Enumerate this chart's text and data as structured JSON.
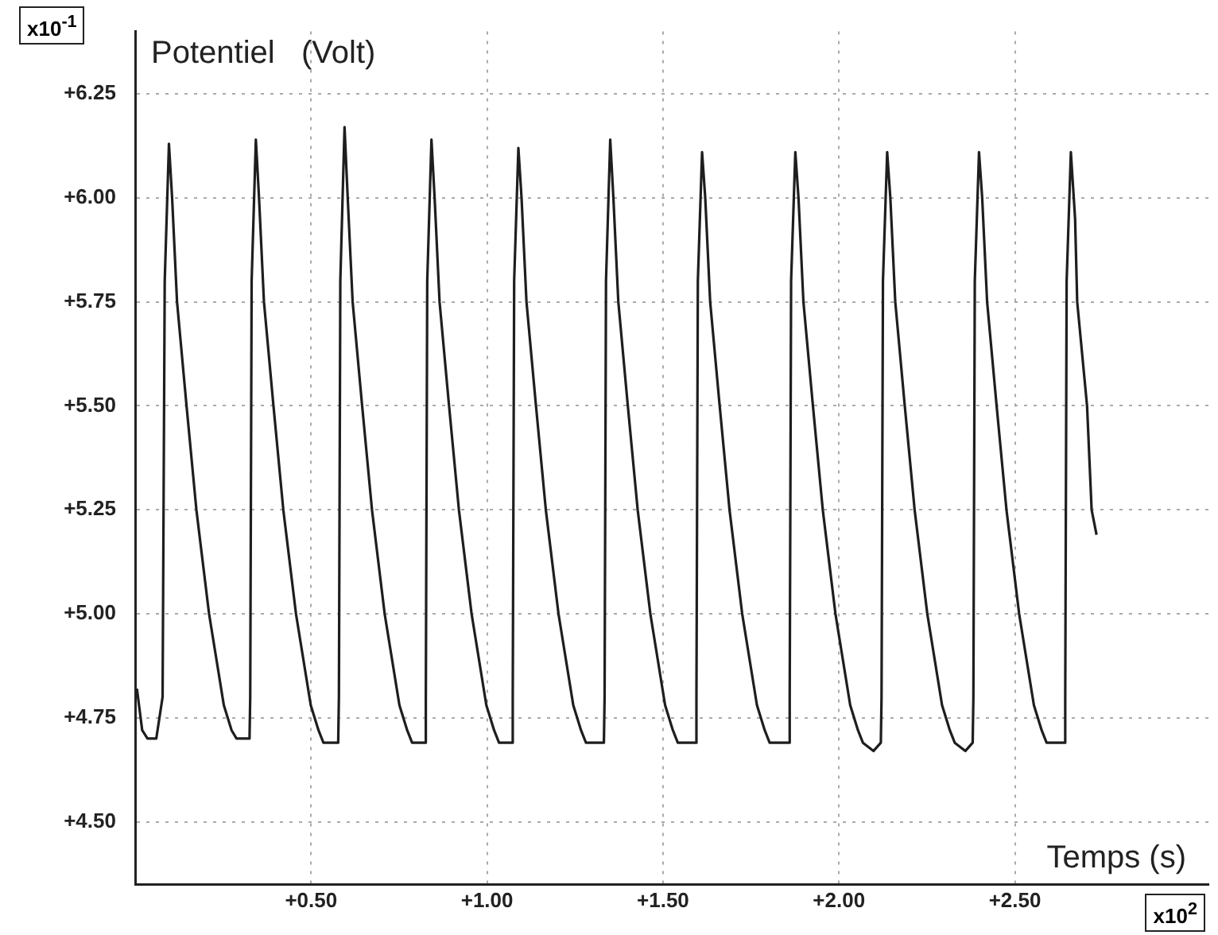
{
  "chart_data": {
    "type": "line",
    "ylabel": "Potentiel   (Volt)",
    "xlabel": "Temps (s)",
    "annotations": [
      "x10$^{-1}$",
      "x10$^{2}$"
    ],
    "x": [
      0.005,
      0.02,
      0.035,
      0.06,
      0.078,
      0.084,
      0.096,
      0.105,
      0.119,
      0.146,
      0.174,
      0.21,
      0.252,
      0.274,
      0.288,
      0.318,
      0.325,
      0.327,
      0.331,
      0.343,
      0.352,
      0.366,
      0.393,
      0.421,
      0.457,
      0.499,
      0.521,
      0.535,
      0.565,
      0.577,
      0.579,
      0.583,
      0.595,
      0.604,
      0.618,
      0.645,
      0.673,
      0.709,
      0.751,
      0.773,
      0.787,
      0.817,
      0.824,
      0.826,
      0.83,
      0.842,
      0.851,
      0.865,
      0.892,
      0.92,
      0.956,
      0.998,
      1.02,
      1.034,
      1.064,
      1.071,
      1.073,
      1.077,
      1.089,
      1.098,
      1.112,
      1.139,
      1.167,
      1.203,
      1.245,
      1.267,
      1.281,
      1.311,
      1.332,
      1.334,
      1.338,
      1.35,
      1.359,
      1.373,
      1.4,
      1.428,
      1.464,
      1.506,
      1.528,
      1.542,
      1.572,
      1.593,
      1.595,
      1.599,
      1.611,
      1.62,
      1.634,
      1.661,
      1.689,
      1.725,
      1.767,
      1.789,
      1.803,
      1.833,
      1.858,
      1.86,
      1.864,
      1.876,
      1.885,
      1.899,
      1.926,
      1.954,
      1.99,
      2.032,
      2.054,
      2.068,
      2.098,
      2.119,
      2.121,
      2.125,
      2.137,
      2.146,
      2.16,
      2.187,
      2.215,
      2.251,
      2.293,
      2.315,
      2.329,
      2.359,
      2.38,
      2.382,
      2.386,
      2.398,
      2.407,
      2.421,
      2.448,
      2.476,
      2.512,
      2.554,
      2.576,
      2.59,
      2.62,
      2.641,
      2.643,
      2.647,
      2.659,
      2.671,
      2.677,
      2.705,
      2.718,
      2.732
    ],
    "series": [
      {
        "color": "#1e1e1e",
        "values": [
          4.82,
          4.72,
          4.7,
          4.7,
          4.8,
          5.8,
          6.13,
          6.0,
          5.75,
          5.5,
          5.25,
          5.0,
          4.78,
          4.72,
          4.7,
          4.7,
          4.7,
          4.8,
          5.8,
          6.14,
          6.0,
          5.75,
          5.5,
          5.25,
          5.0,
          4.78,
          4.72,
          4.69,
          4.69,
          4.69,
          4.8,
          5.8,
          6.17,
          6.0,
          5.75,
          5.5,
          5.25,
          5.0,
          4.78,
          4.72,
          4.69,
          4.69,
          4.69,
          4.8,
          5.8,
          6.14,
          6.0,
          5.75,
          5.5,
          5.25,
          5.0,
          4.78,
          4.72,
          4.69,
          4.69,
          4.69,
          4.8,
          5.8,
          6.12,
          6.0,
          5.75,
          5.5,
          5.25,
          5.0,
          4.78,
          4.72,
          4.69,
          4.69,
          4.69,
          4.8,
          5.8,
          6.14,
          6.0,
          5.75,
          5.5,
          5.25,
          5.0,
          4.78,
          4.72,
          4.69,
          4.69,
          4.69,
          4.8,
          5.8,
          6.11,
          6.0,
          5.75,
          5.5,
          5.25,
          5.0,
          4.78,
          4.72,
          4.69,
          4.69,
          4.69,
          4.8,
          5.8,
          6.11,
          6.0,
          5.75,
          5.5,
          5.25,
          5.0,
          4.78,
          4.72,
          4.69,
          4.67,
          4.69,
          4.8,
          5.8,
          6.11,
          6.0,
          5.75,
          5.5,
          5.25,
          5.0,
          4.78,
          4.72,
          4.69,
          4.67,
          4.69,
          4.8,
          5.8,
          6.11,
          6.0,
          5.75,
          5.5,
          5.25,
          5.0,
          4.78,
          4.72,
          4.69,
          4.69,
          4.69,
          4.8,
          5.8,
          6.11,
          5.95,
          5.75,
          5.5,
          5.25,
          5.19
        ]
      }
    ],
    "xlim": [
      0,
      3.05
    ],
    "ylim": [
      4.35,
      6.4
    ],
    "xticks": [
      {
        "value": 0.5,
        "label": "+0.50"
      },
      {
        "value": 1.0,
        "label": "+1.00"
      },
      {
        "value": 1.5,
        "label": "+1.50"
      },
      {
        "value": 2.0,
        "label": "+2.00"
      },
      {
        "value": 2.5,
        "label": "+2.50"
      }
    ],
    "yticks": [
      {
        "value": 4.5,
        "label": "+4.50"
      },
      {
        "value": 4.75,
        "label": "+4.75"
      },
      {
        "value": 5.0,
        "label": "+5.00"
      },
      {
        "value": 5.25,
        "label": "+5.25"
      },
      {
        "value": 5.5,
        "label": "+5.50"
      },
      {
        "value": 5.75,
        "label": "+5.75"
      },
      {
        "value": 6.0,
        "label": "+6.00"
      },
      {
        "value": 6.25,
        "label": "+6.25"
      }
    ],
    "grid": true,
    "marker": "none",
    "line_style": "solid"
  }
}
